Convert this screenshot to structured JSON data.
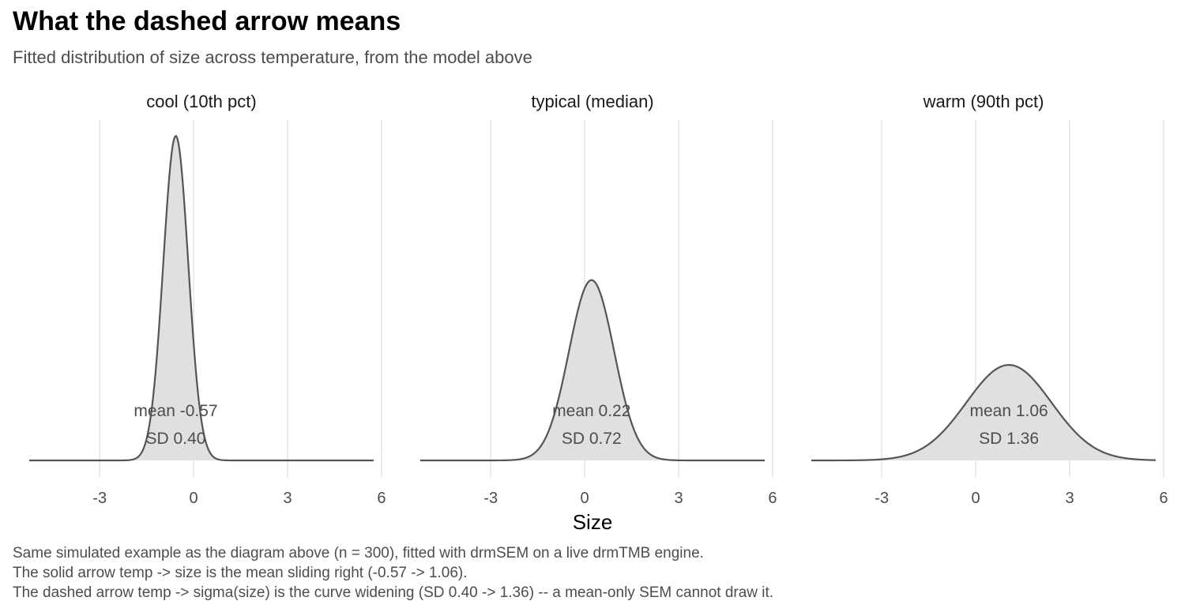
{
  "title": "What the dashed arrow means",
  "subtitle": "Fitted distribution of size across temperature, from the model above",
  "caption": [
    "Same simulated example as the diagram above (n = 300), fitted with drmSEM on a live drmTMB engine.",
    "The solid arrow temp -> size is the mean sliding right (-0.57 -> 1.06).",
    "The dashed arrow temp -> sigma(size) is the curve widening (SD 0.40 -> 1.36) -- a mean-only SEM cannot draw it."
  ],
  "chart_data": {
    "type": "area",
    "xlabel": "Size",
    "ylabel": "",
    "xlim": [
      -5.25,
      5.75
    ],
    "x_ticks": [
      -3,
      0,
      3,
      6
    ],
    "x_tick_labels": [
      "-3",
      "0",
      "3",
      "6"
    ],
    "grid": "vertical major gridlines only",
    "fill_color": "#e0e0e0",
    "line_color": "#555555",
    "panels": [
      {
        "label": "cool (10th pct)",
        "mean": -0.57,
        "sd": 0.4,
        "mean_label": "mean -0.57",
        "sd_label": "SD 0.40"
      },
      {
        "label": "typical (median)",
        "mean": 0.22,
        "sd": 0.72,
        "mean_label": "mean 0.22",
        "sd_label": "SD 0.72"
      },
      {
        "label": "warm (90th pct)",
        "mean": 1.06,
        "sd": 1.36,
        "mean_label": "mean 1.06",
        "sd_label": "SD 1.36"
      }
    ]
  }
}
